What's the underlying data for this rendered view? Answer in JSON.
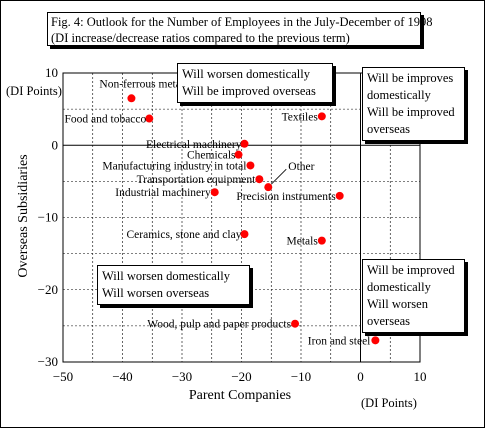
{
  "title": {
    "line1": "Fig. 4: Outlook for the Number of Employees in the July-December of 1998",
    "line2": "(DI increase/decrease ratios compared to the previous term)"
  },
  "y_unit": "(DI Points)",
  "x_unit": "(DI Points)",
  "quadrants": {
    "top_left": [
      "Will worsen domestically",
      "Will be improved overseas"
    ],
    "top_right": [
      "Will be improves",
      "domestically",
      "Will be improved",
      "overseas"
    ],
    "bottom_left": [
      "Will worsen domestically",
      "Will worsen overseas"
    ],
    "bottom_right": [
      "Will be improved",
      "domestically",
      "Will worsen",
      "overseas"
    ]
  },
  "colors": {
    "point": "#ff0000",
    "grid": "#000000"
  },
  "chart_data": {
    "type": "scatter",
    "xlabel": "Parent Companies",
    "ylabel": "Overseas Subsidiaries",
    "xlim": [
      -50,
      10
    ],
    "ylim": [
      -30,
      10
    ],
    "xticks": [
      -50,
      -40,
      -30,
      -20,
      -10,
      0,
      10
    ],
    "yticks": [
      10,
      0,
      -10,
      -20,
      -30
    ],
    "grid": "dashed",
    "points": [
      {
        "label": "Non-ferrous metals",
        "x": -38.5,
        "y": 6.5
      },
      {
        "label": "Food and tobacco",
        "x": -35.5,
        "y": 3.7
      },
      {
        "label": "Textiles",
        "x": -6.5,
        "y": 4.0
      },
      {
        "label": "Electrical machinery",
        "x": -19.5,
        "y": 0.2
      },
      {
        "label": "Chemicals",
        "x": -20.5,
        "y": -1.3
      },
      {
        "label": "Manufacturing industry in total",
        "x": -18.5,
        "y": -2.8
      },
      {
        "label": "Transportation equipment",
        "x": -17.0,
        "y": -4.7
      },
      {
        "label": "Other",
        "x": -15.5,
        "y": -5.8
      },
      {
        "label": "Industrial machinery",
        "x": -24.5,
        "y": -6.5
      },
      {
        "label": "Precision instruments",
        "x": -3.5,
        "y": -7.0
      },
      {
        "label": "Ceramics, stone and clay",
        "x": -19.5,
        "y": -12.3
      },
      {
        "label": "Metals",
        "x": -6.5,
        "y": -13.2
      },
      {
        "label": "Wood, pulp and paper products",
        "x": -11.0,
        "y": -24.7
      },
      {
        "label": "Iron and steel",
        "x": 2.5,
        "y": -27.0
      }
    ]
  }
}
